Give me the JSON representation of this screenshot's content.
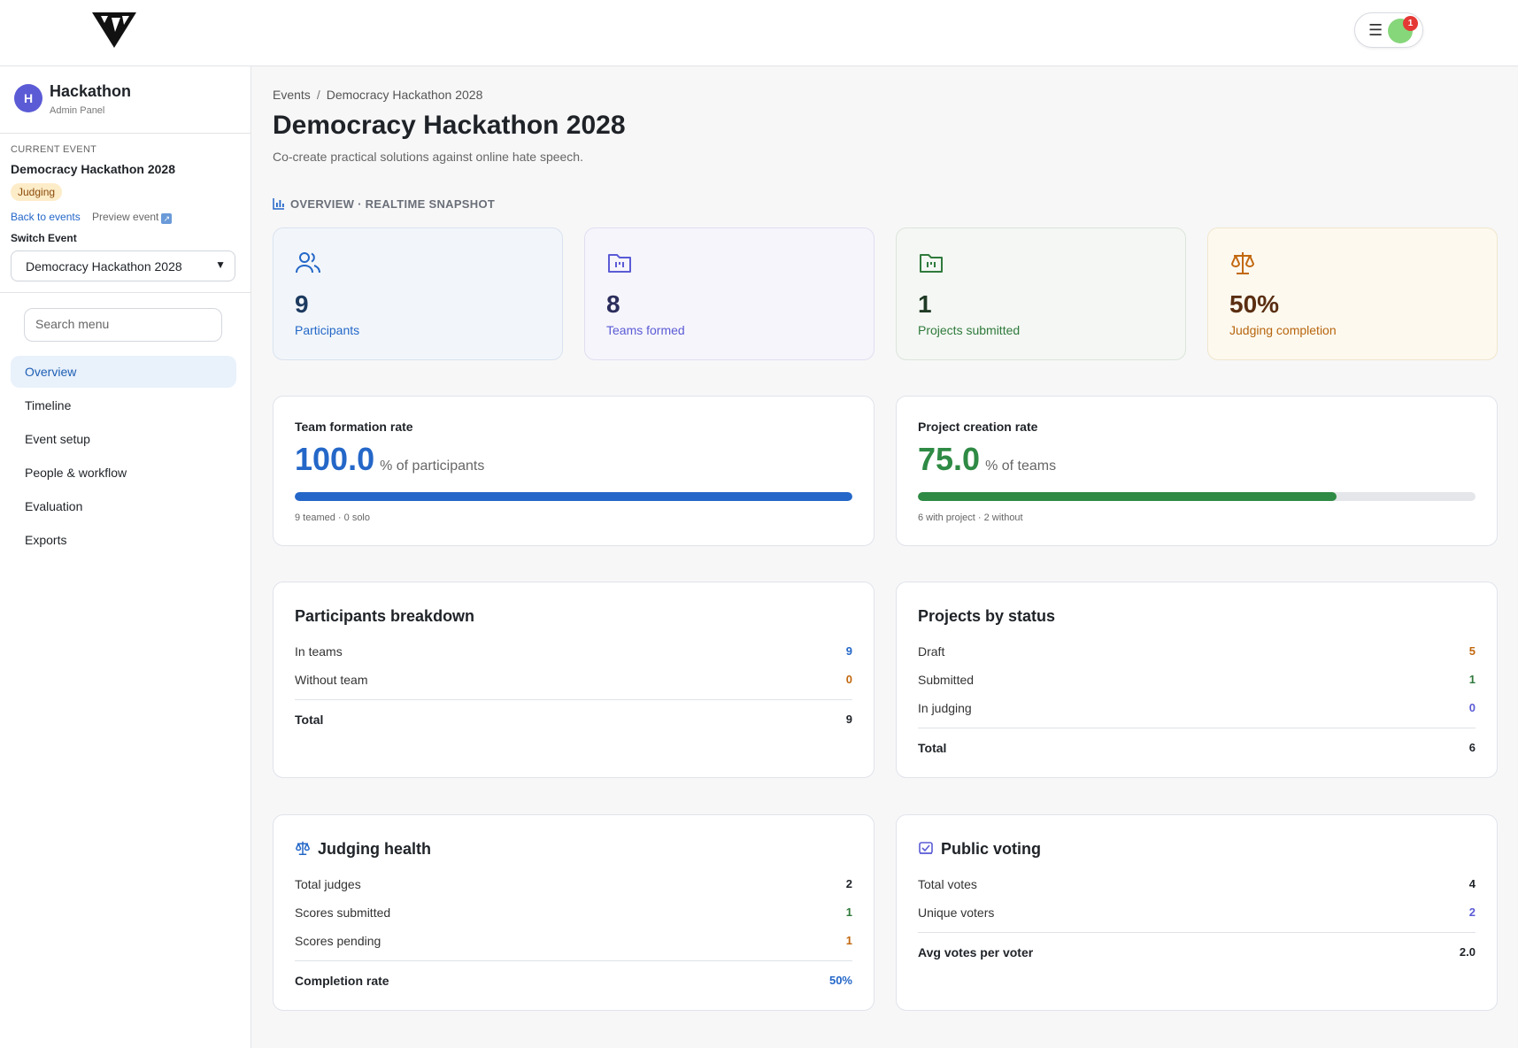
{
  "header": {
    "notification_count": "1",
    "menu_icon": "hamburger-icon"
  },
  "brand": {
    "initial": "H",
    "title": "Hackathon",
    "subtitle": "Admin Panel"
  },
  "current_event": {
    "label": "CURRENT EVENT",
    "name": "Democracy Hackathon 2028",
    "status": "Judging",
    "back_link": "Back to events",
    "preview_link": "Preview event",
    "switch_label": "Switch Event",
    "switch_value": "Democracy Hackathon 2028"
  },
  "search": {
    "placeholder": "Search menu"
  },
  "nav": {
    "items": [
      {
        "label": "Overview",
        "active": true
      },
      {
        "label": "Timeline"
      },
      {
        "label": "Event setup"
      },
      {
        "label": "People & workflow"
      },
      {
        "label": "Evaluation"
      },
      {
        "label": "Exports"
      }
    ]
  },
  "breadcrumb": {
    "root": "Events",
    "separator": "/",
    "current": "Democracy Hackathon 2028"
  },
  "page": {
    "title": "Democracy Hackathon 2028",
    "subtitle": "Co-create practical solutions against online hate speech."
  },
  "section": {
    "title": "OVERVIEW · REALTIME SNAPSHOT"
  },
  "kpis": [
    {
      "value": "9",
      "label": "Participants",
      "icon": "users-icon"
    },
    {
      "value": "8",
      "label": "Teams formed",
      "icon": "folder-icon"
    },
    {
      "value": "1",
      "label": "Projects submitted",
      "icon": "folder-check-icon"
    },
    {
      "value": "50%",
      "label": "Judging completion",
      "icon": "scale-icon"
    }
  ],
  "rates": {
    "team": {
      "title": "Team formation rate",
      "value": "100.0",
      "unit": "% of participants",
      "percent": 100,
      "note": "9 teamed · 0 solo",
      "color": "#2467c8"
    },
    "project": {
      "title": "Project creation rate",
      "value": "75.0",
      "unit": "% of teams",
      "percent": 75,
      "note": "6 with project · 2 without",
      "color": "#2e8a44"
    }
  },
  "participants_breakdown": {
    "title": "Participants breakdown",
    "rows": [
      {
        "label": "In teams",
        "value": "9"
      },
      {
        "label": "Without team",
        "value": "0"
      }
    ],
    "total_label": "Total",
    "total_value": "9"
  },
  "projects_by_status": {
    "title": "Projects by status",
    "rows": [
      {
        "label": "Draft",
        "value": "5"
      },
      {
        "label": "Submitted",
        "value": "1"
      },
      {
        "label": "In judging",
        "value": "0"
      }
    ],
    "total_label": "Total",
    "total_value": "6"
  },
  "judging_health": {
    "title": "Judging health",
    "rows": [
      {
        "label": "Total judges",
        "value": "2"
      },
      {
        "label": "Scores submitted",
        "value": "1"
      },
      {
        "label": "Scores pending",
        "value": "1"
      }
    ],
    "total_label": "Completion rate",
    "total_value": "50%"
  },
  "public_voting": {
    "title": "Public voting",
    "rows": [
      {
        "label": "Total votes",
        "value": "4"
      },
      {
        "label": "Unique voters",
        "value": "2"
      }
    ],
    "total_label": "Avg votes per voter",
    "total_value": "2.0"
  }
}
